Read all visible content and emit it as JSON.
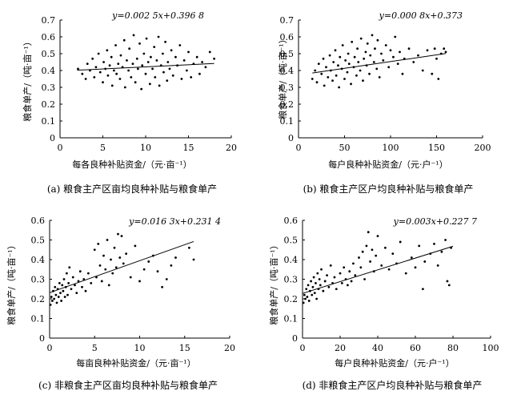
{
  "chart_data": [
    {
      "type": "scatter",
      "caption": "(a) 粮食主产区亩均良种补贴与粮食单产",
      "xlabel": "每各良种补贴资金/（元·亩⁻¹）",
      "ylabel": "粮食单产/（吨·亩⁻¹）",
      "equation": "y=0.002 5x+0.396 8",
      "xlim": [
        0,
        20
      ],
      "ylim": [
        0,
        0.7
      ],
      "xticks": [
        0,
        5,
        10,
        15,
        20
      ],
      "yticks": [
        0,
        0.1,
        0.2,
        0.3,
        0.4,
        0.5,
        0.6,
        0.7
      ],
      "xtick_labels": [
        "0",
        "5",
        "10",
        "15",
        "20"
      ],
      "ytick_labels": [
        "0",
        "0.1",
        "0.2",
        "0.3",
        "0.4",
        "0.5",
        "0.6",
        "0.7"
      ],
      "trendline": {
        "slope": 0.0025,
        "intercept": 0.3968,
        "x_range": [
          2,
          18
        ]
      },
      "points": [
        [
          2.1,
          0.41
        ],
        [
          2.6,
          0.38
        ],
        [
          3.0,
          0.35
        ],
        [
          3.2,
          0.44
        ],
        [
          3.5,
          0.4
        ],
        [
          3.8,
          0.47
        ],
        [
          4.0,
          0.36
        ],
        [
          4.2,
          0.42
        ],
        [
          4.5,
          0.5
        ],
        [
          4.7,
          0.39
        ],
        [
          5.0,
          0.33
        ],
        [
          5.1,
          0.45
        ],
        [
          5.3,
          0.41
        ],
        [
          5.5,
          0.52
        ],
        [
          5.6,
          0.37
        ],
        [
          5.8,
          0.43
        ],
        [
          6.0,
          0.48
        ],
        [
          6.1,
          0.31
        ],
        [
          6.3,
          0.4
        ],
        [
          6.5,
          0.55
        ],
        [
          6.6,
          0.38
        ],
        [
          6.8,
          0.44
        ],
        [
          7.0,
          0.35
        ],
        [
          7.1,
          0.49
        ],
        [
          7.3,
          0.42
        ],
        [
          7.5,
          0.58
        ],
        [
          7.6,
          0.3
        ],
        [
          7.8,
          0.46
        ],
        [
          8.0,
          0.4
        ],
        [
          8.1,
          0.53
        ],
        [
          8.3,
          0.36
        ],
        [
          8.5,
          0.44
        ],
        [
          8.6,
          0.61
        ],
        [
          8.8,
          0.33
        ],
        [
          9.0,
          0.47
        ],
        [
          9.1,
          0.41
        ],
        [
          9.3,
          0.56
        ],
        [
          9.5,
          0.29
        ],
        [
          9.6,
          0.43
        ],
        [
          9.8,
          0.5
        ],
        [
          10.0,
          0.38
        ],
        [
          10.1,
          0.59
        ],
        [
          10.3,
          0.45
        ],
        [
          10.5,
          0.32
        ],
        [
          10.6,
          0.48
        ],
        [
          10.8,
          0.41
        ],
        [
          11.0,
          0.54
        ],
        [
          11.1,
          0.36
        ],
        [
          11.3,
          0.46
        ],
        [
          11.5,
          0.6
        ],
        [
          11.6,
          0.31
        ],
        [
          11.8,
          0.43
        ],
        [
          12.0,
          0.5
        ],
        [
          12.1,
          0.39
        ],
        [
          12.3,
          0.57
        ],
        [
          12.5,
          0.34
        ],
        [
          12.6,
          0.45
        ],
        [
          12.8,
          0.41
        ],
        [
          13.0,
          0.52
        ],
        [
          13.2,
          0.37
        ],
        [
          13.5,
          0.48
        ],
        [
          13.7,
          0.43
        ],
        [
          14.0,
          0.55
        ],
        [
          14.2,
          0.35
        ],
        [
          14.5,
          0.46
        ],
        [
          14.8,
          0.4
        ],
        [
          15.0,
          0.51
        ],
        [
          15.3,
          0.36
        ],
        [
          15.6,
          0.44
        ],
        [
          16.0,
          0.48
        ],
        [
          16.3,
          0.38
        ],
        [
          16.6,
          0.45
        ],
        [
          17.0,
          0.42
        ],
        [
          17.5,
          0.51
        ],
        [
          18.0,
          0.47
        ]
      ]
    },
    {
      "type": "scatter",
      "caption": "(b) 粮食主产区户均良种补贴与粮食单产",
      "xlabel": "每户良种补贴资金/（元·户⁻¹）",
      "ylabel": "粮食单产/（吨·亩⁻¹）",
      "equation": "y=0.000 8x+0.373",
      "xlim": [
        0,
        200
      ],
      "ylim": [
        0,
        0.7
      ],
      "xticks": [
        0,
        50,
        100,
        150,
        200
      ],
      "yticks": [
        0,
        0.1,
        0.2,
        0.3,
        0.4,
        0.5,
        0.6,
        0.7
      ],
      "xtick_labels": [
        "0",
        "50",
        "100",
        "150",
        "200"
      ],
      "ytick_labels": [
        "0",
        "0.1",
        "0.2",
        "0.3",
        "0.4",
        "0.5",
        "0.6",
        "0.7"
      ],
      "trendline": {
        "slope": 0.0008,
        "intercept": 0.373,
        "x_range": [
          15,
          160
        ]
      },
      "points": [
        [
          15,
          0.35
        ],
        [
          18,
          0.4
        ],
        [
          20,
          0.33
        ],
        [
          22,
          0.44
        ],
        [
          25,
          0.38
        ],
        [
          27,
          0.47
        ],
        [
          28,
          0.31
        ],
        [
          30,
          0.42
        ],
        [
          32,
          0.36
        ],
        [
          34,
          0.49
        ],
        [
          35,
          0.4
        ],
        [
          37,
          0.34
        ],
        [
          38,
          0.45
        ],
        [
          40,
          0.52
        ],
        [
          41,
          0.37
        ],
        [
          43,
          0.43
        ],
        [
          44,
          0.3
        ],
        [
          45,
          0.48
        ],
        [
          47,
          0.41
        ],
        [
          48,
          0.55
        ],
        [
          50,
          0.35
        ],
        [
          51,
          0.46
        ],
        [
          53,
          0.39
        ],
        [
          54,
          0.5
        ],
        [
          55,
          0.44
        ],
        [
          57,
          0.32
        ],
        [
          58,
          0.57
        ],
        [
          60,
          0.42
        ],
        [
          61,
          0.48
        ],
        [
          63,
          0.37
        ],
        [
          64,
          0.53
        ],
        [
          65,
          0.45
        ],
        [
          67,
          0.4
        ],
        [
          68,
          0.59
        ],
        [
          70,
          0.34
        ],
        [
          71,
          0.47
        ],
        [
          73,
          0.51
        ],
        [
          74,
          0.43
        ],
        [
          75,
          0.56
        ],
        [
          77,
          0.38
        ],
        [
          78,
          0.49
        ],
        [
          80,
          0.61
        ],
        [
          82,
          0.45
        ],
        [
          83,
          0.53
        ],
        [
          85,
          0.41
        ],
        [
          86,
          0.58
        ],
        [
          88,
          0.36
        ],
        [
          90,
          0.5
        ],
        [
          92,
          0.46
        ],
        [
          95,
          0.55
        ],
        [
          98,
          0.42
        ],
        [
          100,
          0.52
        ],
        [
          103,
          0.48
        ],
        [
          105,
          0.6
        ],
        [
          108,
          0.44
        ],
        [
          110,
          0.51
        ],
        [
          113,
          0.38
        ],
        [
          115,
          0.47
        ],
        [
          120,
          0.53
        ],
        [
          125,
          0.45
        ],
        [
          130,
          0.49
        ],
        [
          135,
          0.4
        ],
        [
          140,
          0.52
        ],
        [
          145,
          0.38
        ],
        [
          148,
          0.53
        ],
        [
          150,
          0.47
        ],
        [
          152,
          0.35
        ],
        [
          155,
          0.5
        ],
        [
          158,
          0.53
        ],
        [
          160,
          0.51
        ]
      ]
    },
    {
      "type": "scatter",
      "caption": "(c) 非粮食主产区亩均良种补贴与粮食单产",
      "xlabel": "每亩良种补贴资金/（元·亩⁻¹）",
      "ylabel": "粮食单产/（吨·亩⁻¹）",
      "equation": "y=0.016 3x+0.231 4",
      "xlim": [
        0,
        20
      ],
      "ylim": [
        0,
        0.6
      ],
      "xticks": [
        0,
        5,
        10,
        15,
        20
      ],
      "yticks": [
        0,
        0.1,
        0.2,
        0.3,
        0.4,
        0.5,
        0.6
      ],
      "xtick_labels": [
        "0",
        "5",
        "10",
        "15",
        "20"
      ],
      "ytick_labels": [
        "0",
        "0.1",
        "0.2",
        "0.3",
        "0.4",
        "0.5",
        "0.6"
      ],
      "trendline": {
        "slope": 0.0163,
        "intercept": 0.2314,
        "x_range": [
          0,
          16
        ]
      },
      "points": [
        [
          0.1,
          0.17
        ],
        [
          0.2,
          0.21
        ],
        [
          0.3,
          0.19
        ],
        [
          0.4,
          0.24
        ],
        [
          0.5,
          0.2
        ],
        [
          0.6,
          0.26
        ],
        [
          0.7,
          0.22
        ],
        [
          0.8,
          0.18
        ],
        [
          0.9,
          0.25
        ],
        [
          1.0,
          0.21
        ],
        [
          1.1,
          0.28
        ],
        [
          1.2,
          0.23
        ],
        [
          1.3,
          0.19
        ],
        [
          1.4,
          0.27
        ],
        [
          1.5,
          0.24
        ],
        [
          1.6,
          0.3
        ],
        [
          1.7,
          0.21
        ],
        [
          1.8,
          0.26
        ],
        [
          1.9,
          0.33
        ],
        [
          2.0,
          0.22
        ],
        [
          2.1,
          0.28
        ],
        [
          2.2,
          0.36
        ],
        [
          2.4,
          0.25
        ],
        [
          2.6,
          0.31
        ],
        [
          2.8,
          0.27
        ],
        [
          3.0,
          0.23
        ],
        [
          3.2,
          0.29
        ],
        [
          3.4,
          0.34
        ],
        [
          3.6,
          0.26
        ],
        [
          3.8,
          0.3
        ],
        [
          4.0,
          0.24
        ],
        [
          4.3,
          0.33
        ],
        [
          4.6,
          0.28
        ],
        [
          5.0,
          0.45
        ],
        [
          5.2,
          0.31
        ],
        [
          5.4,
          0.48
        ],
        [
          5.6,
          0.37
        ],
        [
          5.8,
          0.29
        ],
        [
          6.0,
          0.42
        ],
        [
          6.2,
          0.35
        ],
        [
          6.4,
          0.5
        ],
        [
          6.6,
          0.27
        ],
        [
          6.8,
          0.4
        ],
        [
          7.0,
          0.33
        ],
        [
          7.2,
          0.46
        ],
        [
          7.4,
          0.36
        ],
        [
          7.6,
          0.53
        ],
        [
          7.8,
          0.41
        ],
        [
          8.0,
          0.52
        ],
        [
          8.2,
          0.38
        ],
        [
          8.5,
          0.43
        ],
        [
          9.0,
          0.31
        ],
        [
          9.5,
          0.47
        ],
        [
          10.0,
          0.29
        ],
        [
          10.5,
          0.35
        ],
        [
          11.0,
          0.39
        ],
        [
          11.5,
          0.42
        ],
        [
          12.0,
          0.34
        ],
        [
          12.5,
          0.26
        ],
        [
          13.0,
          0.3
        ],
        [
          13.5,
          0.37
        ],
        [
          14.0,
          0.41
        ],
        [
          15.5,
          0.46
        ],
        [
          16.0,
          0.4
        ]
      ]
    },
    {
      "type": "scatter",
      "caption": "(d) 非粮食主产区户均良种补贴与粮食单产",
      "xlabel": "每户良种补贴资金/（元·户⁻¹）",
      "ylabel": "粮食单产/（吨·亩⁻¹）",
      "equation": "y=0.003x+0.227 7",
      "xlim": [
        0,
        100
      ],
      "ylim": [
        0,
        0.6
      ],
      "xticks": [
        0,
        20,
        40,
        60,
        80,
        100
      ],
      "yticks": [
        0,
        0.1,
        0.2,
        0.3,
        0.4,
        0.5,
        0.6
      ],
      "xtick_labels": [
        "0",
        "20",
        "40",
        "60",
        "80",
        "100"
      ],
      "ytick_labels": [
        "0",
        "0.1",
        "0.2",
        "0.3",
        "0.4",
        "0.5",
        "0.6"
      ],
      "trendline": {
        "slope": 0.003,
        "intercept": 0.2277,
        "x_range": [
          0,
          80
        ]
      },
      "points": [
        [
          0.5,
          0.18
        ],
        [
          1,
          0.22
        ],
        [
          1.5,
          0.2
        ],
        [
          2,
          0.25
        ],
        [
          2.5,
          0.21
        ],
        [
          3,
          0.27
        ],
        [
          3.5,
          0.19
        ],
        [
          4,
          0.24
        ],
        [
          4.5,
          0.29
        ],
        [
          5,
          0.22
        ],
        [
          5.5,
          0.26
        ],
        [
          6,
          0.31
        ],
        [
          6.5,
          0.23
        ],
        [
          7,
          0.28
        ],
        [
          7.5,
          0.2
        ],
        [
          8,
          0.33
        ],
        [
          8.5,
          0.25
        ],
        [
          9,
          0.3
        ],
        [
          9.5,
          0.27
        ],
        [
          10,
          0.35
        ],
        [
          11,
          0.24
        ],
        [
          12,
          0.29
        ],
        [
          13,
          0.32
        ],
        [
          14,
          0.26
        ],
        [
          15,
          0.37
        ],
        [
          16,
          0.28
        ],
        [
          17,
          0.31
        ],
        [
          18,
          0.25
        ],
        [
          20,
          0.33
        ],
        [
          21,
          0.28
        ],
        [
          22,
          0.36
        ],
        [
          23,
          0.3
        ],
        [
          24,
          0.27
        ],
        [
          25,
          0.34
        ],
        [
          26,
          0.29
        ],
        [
          27,
          0.38
        ],
        [
          28,
          0.32
        ],
        [
          30,
          0.41
        ],
        [
          31,
          0.36
        ],
        [
          32,
          0.44
        ],
        [
          33,
          0.3
        ],
        [
          34,
          0.47
        ],
        [
          35,
          0.54
        ],
        [
          36,
          0.39
        ],
        [
          37,
          0.45
        ],
        [
          38,
          0.34
        ],
        [
          39,
          0.42
        ],
        [
          40,
          0.52
        ],
        [
          42,
          0.37
        ],
        [
          44,
          0.46
        ],
        [
          46,
          0.35
        ],
        [
          48,
          0.43
        ],
        [
          50,
          0.38
        ],
        [
          52,
          0.49
        ],
        [
          55,
          0.33
        ],
        [
          58,
          0.41
        ],
        [
          60,
          0.36
        ],
        [
          62,
          0.47
        ],
        [
          64,
          0.25
        ],
        [
          65,
          0.39
        ],
        [
          68,
          0.43
        ],
        [
          70,
          0.48
        ],
        [
          72,
          0.37
        ],
        [
          74,
          0.44
        ],
        [
          76,
          0.5
        ],
        [
          77,
          0.29
        ],
        [
          78,
          0.27
        ],
        [
          79,
          0.46
        ]
      ]
    }
  ]
}
